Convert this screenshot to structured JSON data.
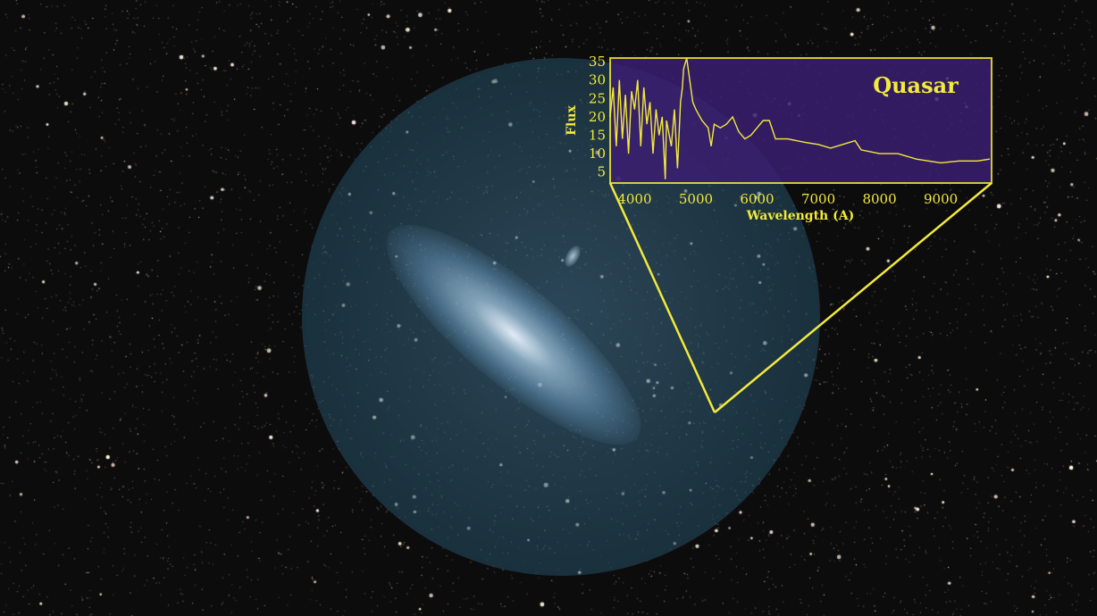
{
  "chart_data": {
    "type": "line",
    "title": "Quasar",
    "xlabel": "Wavelength (A)",
    "ylabel": "Flux",
    "xlim": [
      3600,
      9830
    ],
    "ylim": [
      2,
      36
    ],
    "xticks": [
      4000,
      5000,
      6000,
      7000,
      8000,
      9000
    ],
    "yticks": [
      5,
      10,
      15,
      20,
      25,
      30,
      35
    ],
    "grid": false,
    "line_color": "#f2ea3c",
    "plot_background": "#3b1f72",
    "series": [
      {
        "x": [
          3600,
          3650,
          3700,
          3750,
          3800,
          3850,
          3900,
          3950,
          4000,
          4050,
          4100,
          4150,
          4200,
          4250,
          4300,
          4350,
          4400,
          4450,
          4500,
          4520,
          4600,
          4650,
          4700,
          4750,
          4780,
          4800,
          4850,
          4900,
          4950,
          5000,
          5100,
          5200,
          5250,
          5300,
          5400,
          5500,
          5600,
          5700,
          5800,
          5900,
          6000,
          6100,
          6200,
          6300,
          6500,
          6800,
          7000,
          7200,
          7400,
          7600,
          7700,
          8000,
          8300,
          8600,
          9000,
          9300,
          9600,
          9800
        ],
        "y": [
          20,
          28,
          12,
          30,
          14,
          26,
          10,
          27,
          22,
          30,
          12,
          28,
          18,
          24,
          10,
          22,
          15,
          20,
          3,
          19,
          12,
          22,
          6,
          24,
          28,
          33,
          36,
          30,
          24,
          22,
          19,
          17,
          12,
          18,
          17,
          18,
          20,
          16,
          14,
          15,
          17,
          19,
          19,
          14,
          14,
          13,
          12.5,
          11.5,
          12.5,
          13.5,
          11,
          10,
          10,
          8.5,
          7.5,
          8,
          8,
          8.5
        ]
      }
    ]
  }
}
